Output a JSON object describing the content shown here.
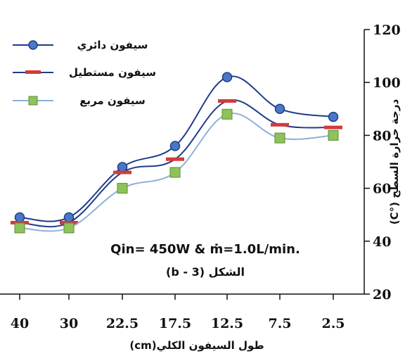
{
  "chart_data": {
    "type": "line",
    "categories": [
      "40",
      "30",
      "22.5",
      "17.5",
      "12.5",
      "7.5",
      "2.5"
    ],
    "series": [
      {
        "name": "سيفون دائري",
        "values": [
          49,
          49,
          68,
          76,
          102,
          90,
          87
        ],
        "color": "#1f3c88",
        "marker": "circle",
        "marker_fill": "#4a78c8"
      },
      {
        "name": "سيفون مستطيل",
        "values": [
          47,
          47,
          66,
          71,
          93,
          84,
          83
        ],
        "color": "#1f3c88",
        "marker": "dash",
        "marker_fill": "#d23b3b"
      },
      {
        "name": "سيفون مربع",
        "values": [
          45,
          45,
          60,
          66,
          88,
          79,
          80
        ],
        "color": "#8fb0d8",
        "marker": "square",
        "marker_fill": "#8fc35a"
      }
    ],
    "y_ticks": [
      "20",
      "40",
      "60",
      "80",
      "100",
      "120"
    ],
    "ylim": [
      20,
      120
    ],
    "xlabel": "طول السيفون الكلي(cm)",
    "ylabel": "درجة حرارة السطح (°C)",
    "annotation_1": "Qin= 450W & ṁ=1.0L/min.",
    "annotation_2": "الشكل (3 - b)",
    "legend_position": "top-left"
  }
}
